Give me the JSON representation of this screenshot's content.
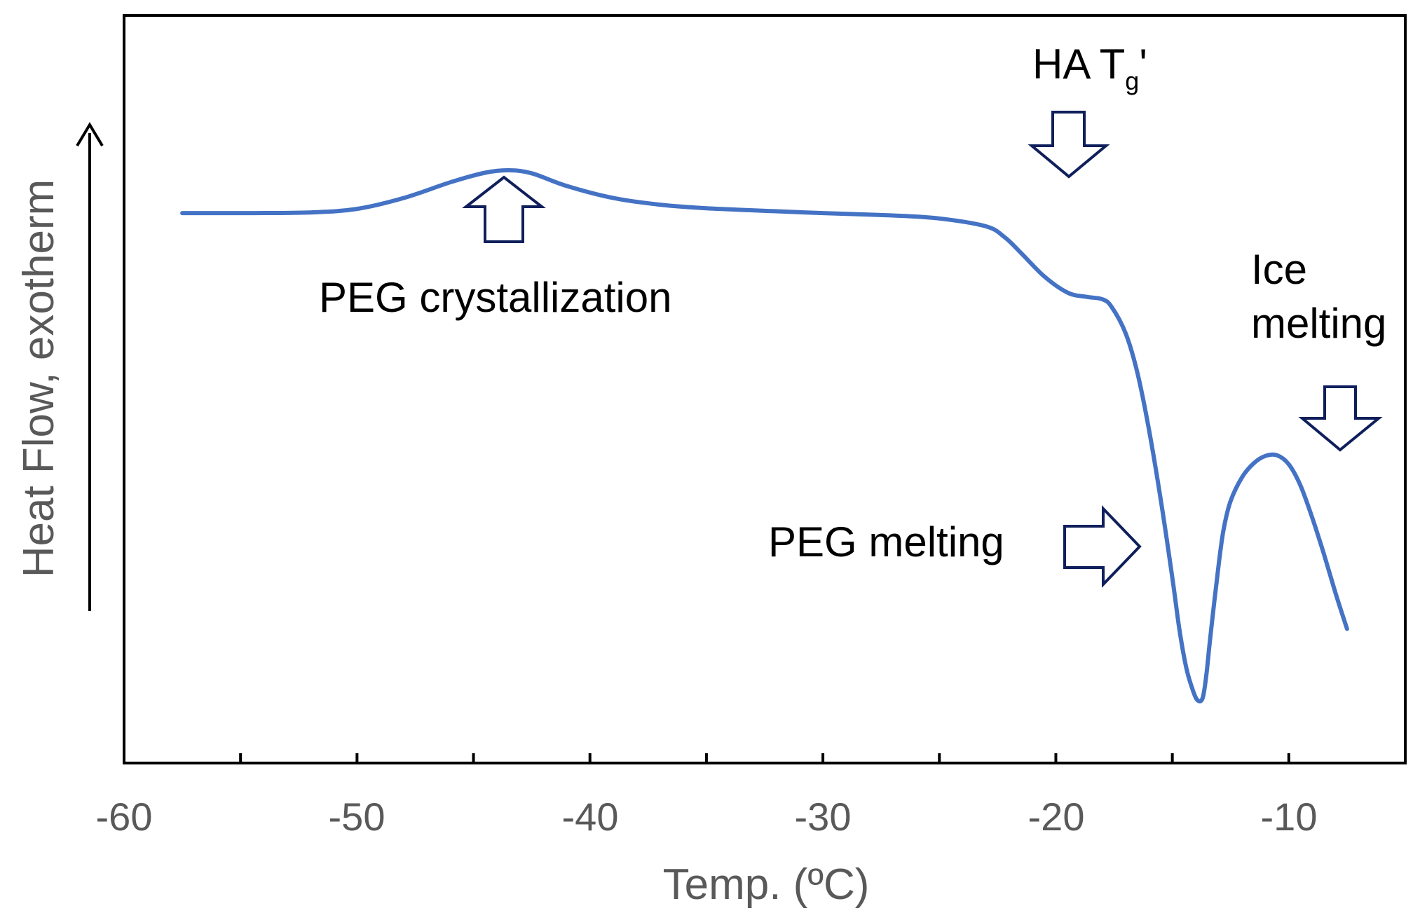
{
  "chart_data": {
    "type": "line",
    "title": "",
    "xlabel": "Temp. (ºC)",
    "ylabel": "Heat Flow, exotherm",
    "xlim": [
      -60,
      -5
    ],
    "ylim": [
      0,
      100
    ],
    "x_ticks": [
      -60,
      -50,
      -40,
      -30,
      -20,
      -10
    ],
    "x_tick_labels": [
      "-60",
      "-50",
      "-40",
      "-30",
      "-20",
      "-10"
    ],
    "x_minor_ticks": [
      -55,
      -45,
      -35,
      -25,
      -15
    ],
    "y_ticks": [],
    "grid": false,
    "legend": "none",
    "series": [
      {
        "name": "DSC thermogram",
        "color": "#4472C4",
        "x": [
          -57.5,
          -55,
          -52,
          -50,
          -48,
          -46,
          -44.5,
          -43.5,
          -42.5,
          -41,
          -39,
          -37,
          -35,
          -32,
          -30,
          -27,
          -25,
          -23,
          -22.2,
          -21.5,
          -20.5,
          -19.5,
          -18.7,
          -18,
          -17.6,
          -17,
          -16.5,
          -16,
          -15.5,
          -15,
          -14.7,
          -14.4,
          -14.1,
          -13.9,
          -13.7,
          -13.55,
          -13.4,
          -13.2,
          -13,
          -12.8,
          -12.5,
          -12,
          -11.5,
          -11,
          -10.5,
          -10,
          -9.5,
          -9,
          -8.5,
          -8,
          -7.5
        ],
        "y": [
          81.5,
          81.5,
          81.6,
          82.2,
          84.0,
          86.6,
          88.2,
          88.6,
          88.1,
          86.0,
          84.0,
          82.9,
          82.3,
          81.8,
          81.5,
          81.1,
          80.6,
          79.3,
          77.5,
          74.9,
          71.0,
          68.3,
          67.6,
          67.2,
          65.9,
          61.5,
          55.0,
          45.5,
          34.0,
          21.0,
          12.5,
          6.0,
          2.1,
          0.6,
          1.0,
          4.5,
          10.0,
          17.0,
          23.5,
          29.0,
          33.7,
          37.7,
          40.0,
          41.2,
          41.3,
          39.8,
          36.3,
          31.0,
          25.0,
          18.5,
          12.5
        ]
      }
    ],
    "annotations": [
      {
        "name": "peg-crystallization",
        "text": "PEG crystallization",
        "arrow": "up",
        "at_x": -43.5
      },
      {
        "name": "ha-tg",
        "text": "HA T",
        "subscript": "g",
        "suffix": "'",
        "arrow": "down",
        "at_x": -19.4
      },
      {
        "name": "peg-melting",
        "text": "PEG melting",
        "arrow": "right",
        "at_x": -17.7
      },
      {
        "name": "ice-melting-line1",
        "text": "Ice",
        "arrow": "down",
        "at_x": -7.8
      },
      {
        "name": "ice-melting-line2",
        "text": "melting"
      }
    ]
  }
}
